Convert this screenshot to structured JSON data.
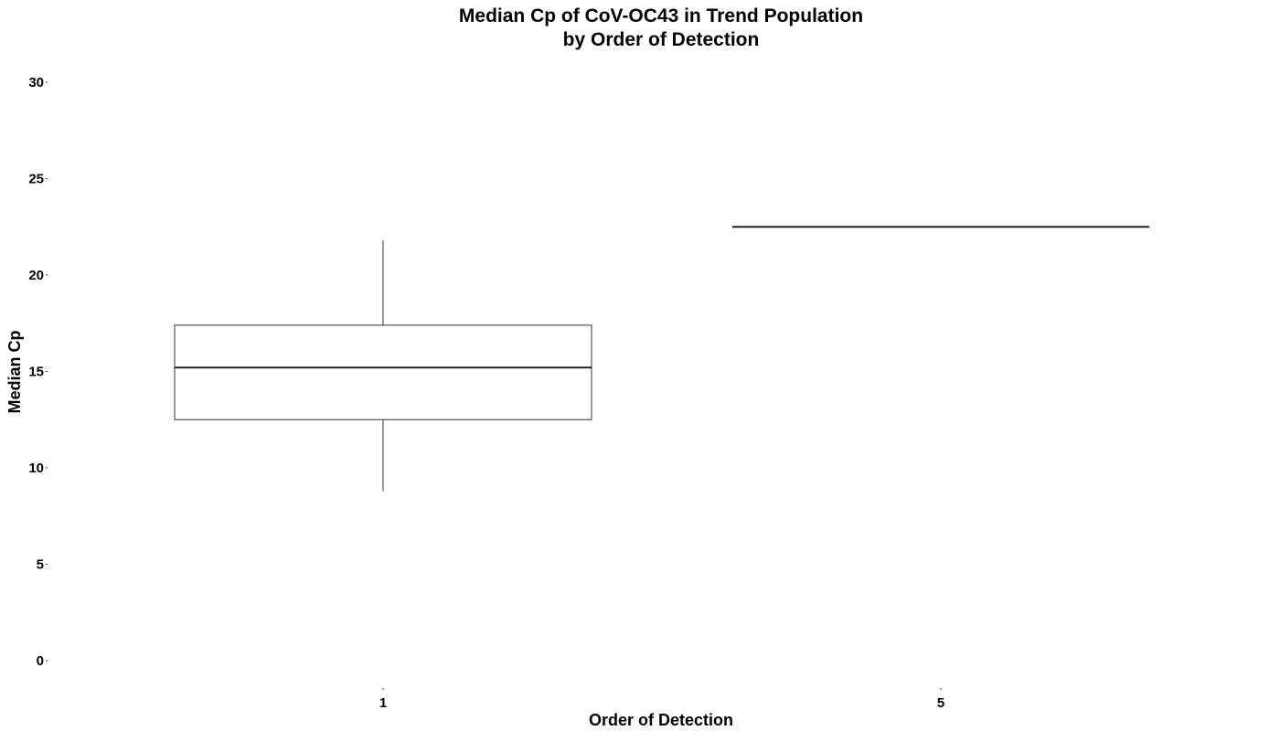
{
  "chart_data": {
    "type": "box",
    "title": [
      "Median Cp of CoV-OC43 in Trend Population",
      "by Order of Detection"
    ],
    "xlabel": "Order of Detection",
    "ylabel": "Median Cp",
    "categories": [
      "1",
      "5"
    ],
    "ylim": [
      0,
      30
    ],
    "yticks": [
      0,
      5,
      10,
      15,
      20,
      25,
      30
    ],
    "boxes": [
      {
        "category": "1",
        "min": 8.8,
        "q1": 12.5,
        "median": 15.2,
        "q3": 17.4,
        "max": 21.8
      },
      {
        "category": "5",
        "min": 22.5,
        "q1": 22.5,
        "median": 22.5,
        "q3": 22.5,
        "max": 22.5
      }
    ],
    "grid": false,
    "legend": "none"
  }
}
